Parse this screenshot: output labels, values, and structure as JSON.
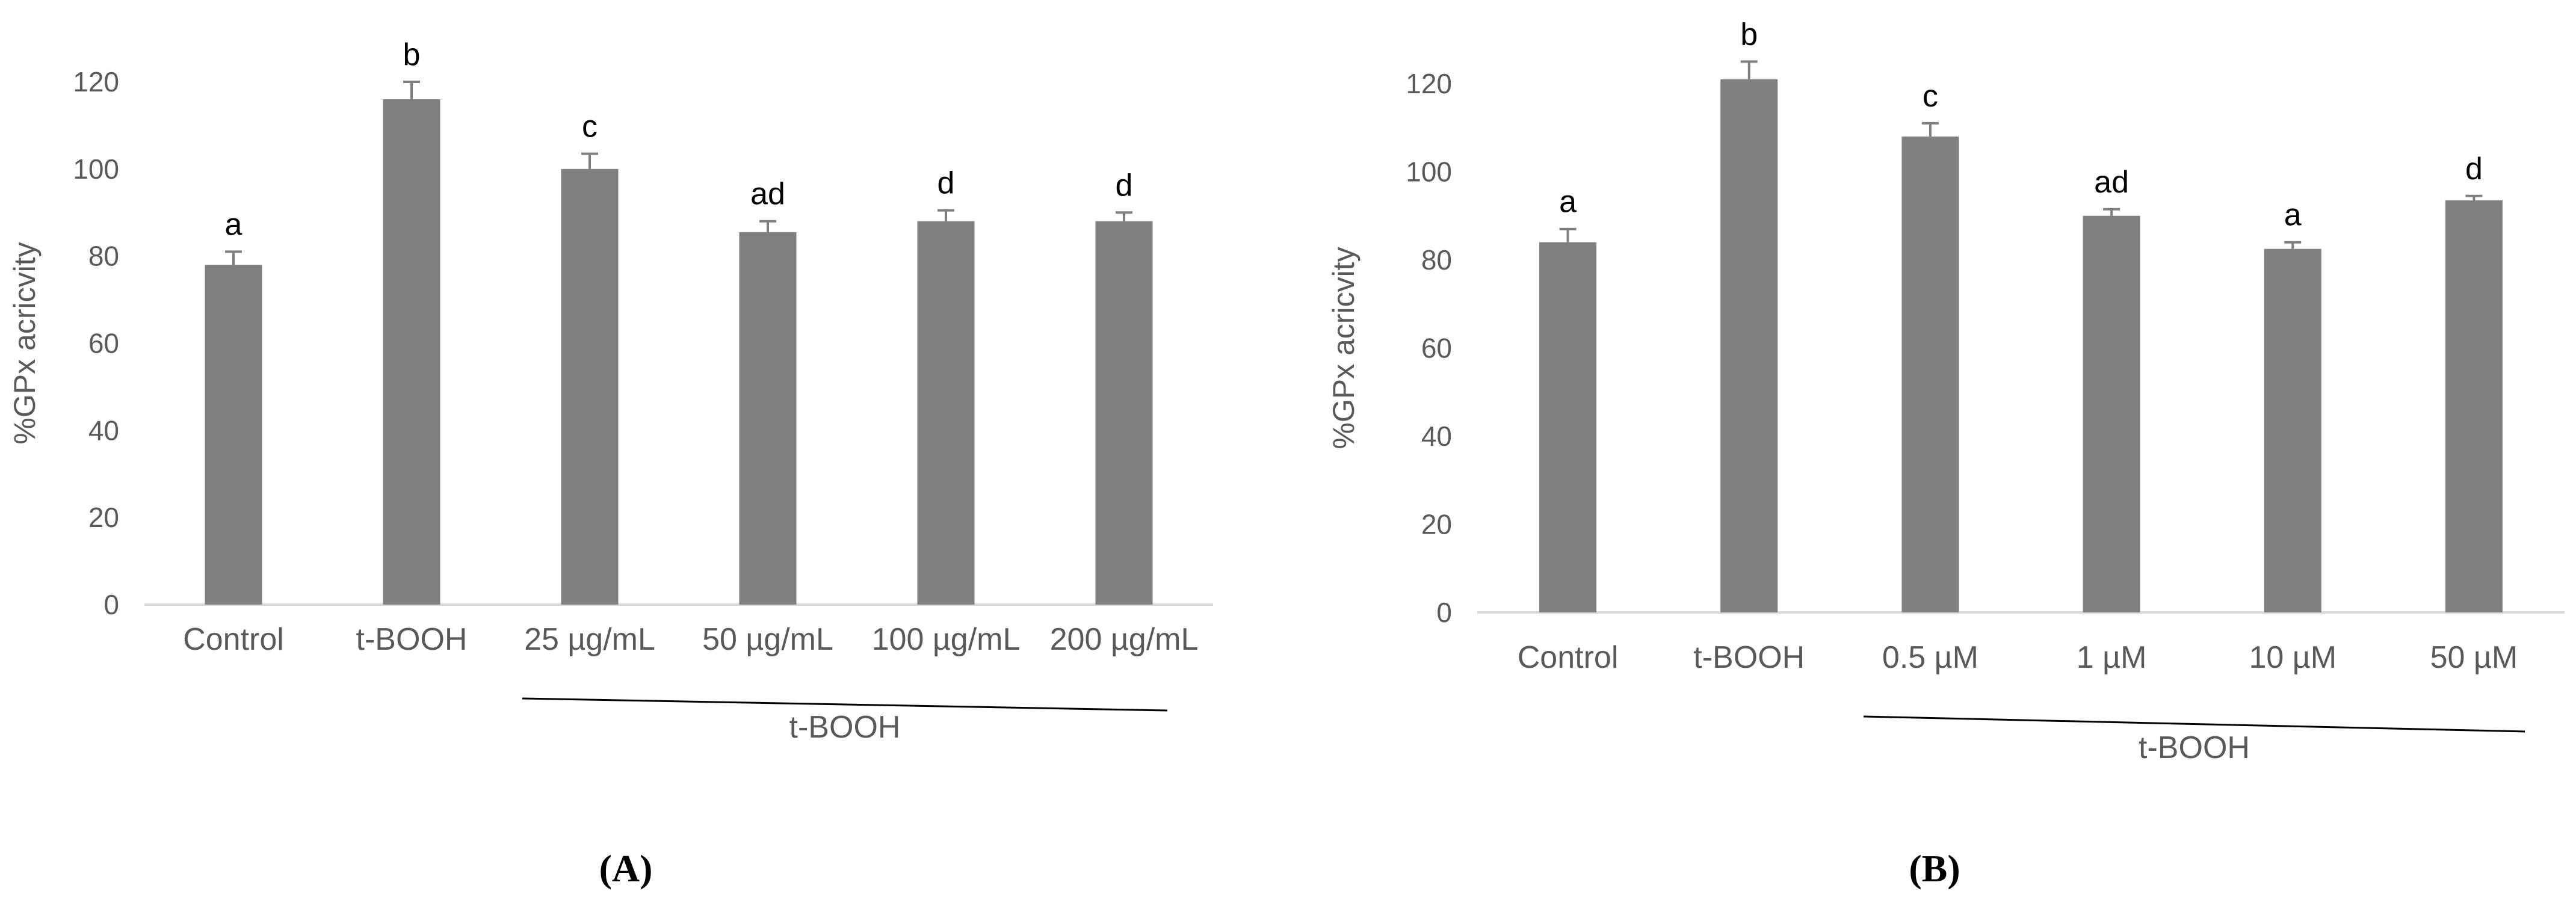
{
  "colors": {
    "bar": "#7f7f7f",
    "axis": "#d9d9d9",
    "text": "#595959",
    "line": "#000000"
  },
  "chart_data": [
    {
      "id": "A",
      "type": "bar",
      "panel_label": "(A)",
      "categories": [
        "Control",
        "t-BOOH",
        "25 µg/mL",
        "50 µg/mL",
        "100 µg/mL",
        "200 µg/mL"
      ],
      "values": [
        78,
        116,
        100,
        85.5,
        88,
        88
      ],
      "errors": [
        3,
        4,
        3.5,
        2.5,
        2.5,
        2
      ],
      "letters": [
        "a",
        "b",
        "c",
        "ad",
        "d",
        "d"
      ],
      "ylabel": "%GPx acricvity",
      "ylim": [
        0,
        120
      ],
      "yticks": [
        0,
        20,
        40,
        60,
        80,
        100,
        120
      ],
      "group_label": "t-BOOH",
      "grid": false
    },
    {
      "id": "B",
      "type": "bar",
      "panel_label": "(B)",
      "categories": [
        "Control",
        "t-BOOH",
        "0.5 µM",
        "1 µM",
        "10 µM",
        "50 µM"
      ],
      "values": [
        84,
        121,
        108,
        90,
        82.5,
        93.5
      ],
      "errors": [
        3,
        4,
        3,
        1.5,
        1.5,
        1
      ],
      "letters": [
        "a",
        "b",
        "c",
        "ad",
        "a",
        "d"
      ],
      "ylabel": "%GPx acricvity",
      "ylim": [
        0,
        120
      ],
      "yticks": [
        0,
        20,
        40,
        60,
        80,
        100,
        120
      ],
      "group_label": "t-BOOH",
      "grid": false
    }
  ]
}
